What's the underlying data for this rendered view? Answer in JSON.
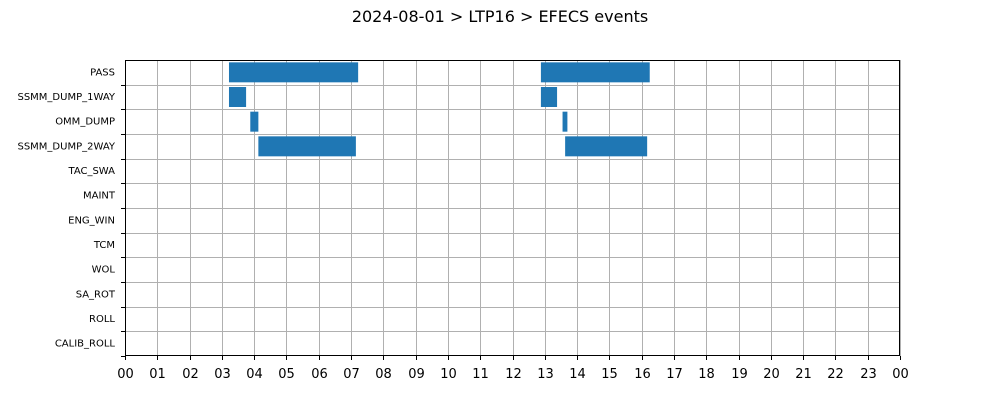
{
  "chart_data": {
    "type": "gantt",
    "title": "2024-08-01 > LTP16 > EFECS events",
    "xlabel": "",
    "ylabel": "",
    "x_range_hours": [
      0,
      24
    ],
    "x_tick_labels": [
      "00",
      "01",
      "02",
      "03",
      "04",
      "05",
      "06",
      "07",
      "08",
      "09",
      "10",
      "11",
      "12",
      "13",
      "14",
      "15",
      "16",
      "17",
      "18",
      "19",
      "20",
      "21",
      "22",
      "23",
      "00"
    ],
    "categories": [
      "PASS",
      "SSMM_DUMP_1WAY",
      "OMM_DUMP",
      "SSMM_DUMP_2WAY",
      "TAC_SWA",
      "MAINT",
      "ENG_WIN",
      "TCM",
      "WOL",
      "SA_ROT",
      "ROLL",
      "CALIB_ROLL"
    ],
    "grid": true,
    "bar_color": "#1f77b4",
    "series": [
      {
        "category": "PASS",
        "intervals": [
          [
            3.22,
            7.22
          ],
          [
            12.88,
            16.25
          ]
        ]
      },
      {
        "category": "SSMM_DUMP_1WAY",
        "intervals": [
          [
            3.22,
            3.75
          ],
          [
            12.88,
            13.38
          ]
        ]
      },
      {
        "category": "OMM_DUMP",
        "intervals": [
          [
            3.88,
            4.13
          ],
          [
            13.55,
            13.7
          ]
        ]
      },
      {
        "category": "SSMM_DUMP_2WAY",
        "intervals": [
          [
            4.13,
            7.15
          ],
          [
            13.63,
            16.17
          ]
        ]
      },
      {
        "category": "TAC_SWA",
        "intervals": []
      },
      {
        "category": "MAINT",
        "intervals": []
      },
      {
        "category": "ENG_WIN",
        "intervals": []
      },
      {
        "category": "TCM",
        "intervals": []
      },
      {
        "category": "WOL",
        "intervals": []
      },
      {
        "category": "SA_ROT",
        "intervals": []
      },
      {
        "category": "ROLL",
        "intervals": []
      },
      {
        "category": "CALIB_ROLL",
        "intervals": []
      }
    ]
  }
}
